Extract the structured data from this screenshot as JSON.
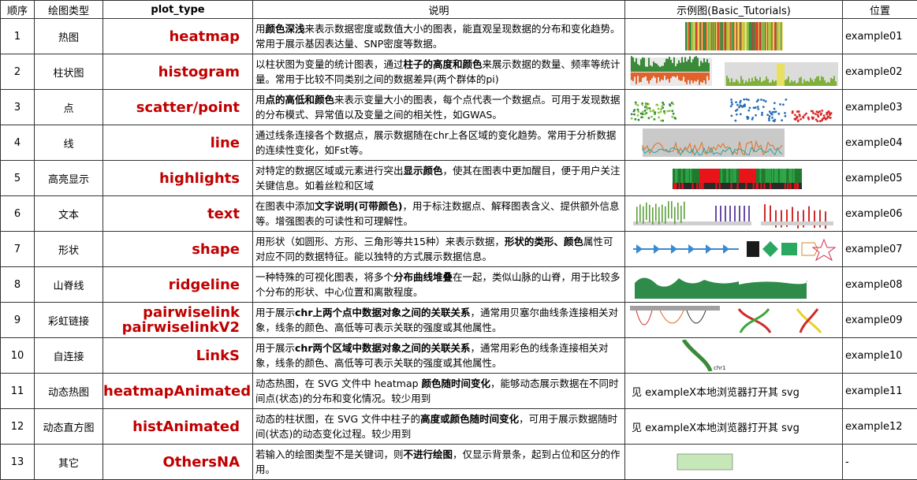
{
  "headers": {
    "order": "顺序",
    "kind": "绘图类型",
    "plot_type": "plot_type",
    "desc": "说明",
    "example": "示例图(Basic_Tutorials)",
    "location": "位置"
  },
  "rows": [
    {
      "order": "1",
      "kind": "热图",
      "plot_type": "heatmap",
      "desc": [
        {
          "t": "用"
        },
        {
          "t": "颜色深浅",
          "b": true
        },
        {
          "t": "来表示数据密度或数值大小的图表，能直观呈现数据的分布和变化趋势。常用于展示基因表达量、SNP密度等数据。"
        }
      ],
      "example_note": "",
      "location": "example01",
      "thumb": "heatmap-thumb"
    },
    {
      "order": "2",
      "kind": "柱状图",
      "plot_type": "histogram",
      "desc": [
        {
          "t": "以柱状图为变量的统计图表，通过"
        },
        {
          "t": "柱子的高度和颜色",
          "b": true
        },
        {
          "t": "来展示数据的数量、频率等统计量。常用于比较不同类别之间的数据差异(两个群体的pi)"
        }
      ],
      "example_note": "",
      "location": "example02",
      "thumb": "histogram-thumb"
    },
    {
      "order": "3",
      "kind": "点",
      "plot_type": "scatter/point",
      "desc": [
        {
          "t": "用"
        },
        {
          "t": "点的高低和颜色",
          "b": true
        },
        {
          "t": "来表示变量大小的图表，每个点代表一个数据点。可用于发现数据的分布模式、异常值以及变量之间的相关性，如GWAS。"
        }
      ],
      "example_note": "",
      "location": "example03",
      "thumb": "scatter-thumb"
    },
    {
      "order": "4",
      "kind": "线",
      "plot_type": "line",
      "desc": [
        {
          "t": "通过线条连接各个数据点，展示数据随在chr上各区域的变化趋势。常用于分析数据的连续性变化，如Fst等。"
        }
      ],
      "example_note": "",
      "location": "example04",
      "thumb": "line-thumb"
    },
    {
      "order": "5",
      "kind": "高亮显示",
      "plot_type": "highlights",
      "desc": [
        {
          "t": "对特定的数据区域或元素进行突出"
        },
        {
          "t": "显示颜色",
          "b": true
        },
        {
          "t": "，使其在图表中更加醒目，便于用户关注关键信息。如着丝粒和区域"
        }
      ],
      "example_note": "",
      "location": "example05",
      "thumb": "highlights-thumb"
    },
    {
      "order": "6",
      "kind": "文本",
      "plot_type": "text",
      "desc": [
        {
          "t": "在图表中添加"
        },
        {
          "t": "文字说明(可带颜色)",
          "b": true
        },
        {
          "t": "，用于标注数据点、解释图表含义、提供额外信息等。增强图表的可读性和可理解性。"
        }
      ],
      "example_note": "",
      "location": "example06",
      "thumb": "text-thumb"
    },
    {
      "order": "7",
      "kind": "形状",
      "plot_type": "shape",
      "desc": [
        {
          "t": "用形状（如圆形、方形、三角形等共15种）来表示数据，"
        },
        {
          "t": "形状的类形、颜色",
          "b": true
        },
        {
          "t": "属性可对应不同的数据特征。能以独特的方式展示数据信息。"
        }
      ],
      "example_note": "",
      "location": "example07",
      "thumb": "shape-thumb"
    },
    {
      "order": "8",
      "kind": "山脊线",
      "plot_type": "ridgeline",
      "desc": [
        {
          "t": "一种特殊的可视化图表，将多个"
        },
        {
          "t": "分布曲线堆叠",
          "b": true
        },
        {
          "t": "在一起，类似山脉的山脊，用于比较多个分布的形状、中心位置和离散程度。"
        }
      ],
      "example_note": "",
      "location": "example08",
      "thumb": "ridgeline-thumb"
    },
    {
      "order": "9",
      "kind": "彩虹链接",
      "plot_type": "pairwiselink\npairwiselinkV2",
      "desc": [
        {
          "t": "用于展示"
        },
        {
          "t": "chr上两个点中数据对象之间的关联关系",
          "b": true
        },
        {
          "t": "，通常用贝塞尔曲线条连接相关对象，线条的颜色、高低等可表示关联的强度或其他属性。"
        }
      ],
      "example_note": "",
      "location": "example09",
      "thumb": "pairwise-thumb"
    },
    {
      "order": "10",
      "kind": "自连接",
      "plot_type": "LinkS",
      "desc": [
        {
          "t": "用于展示"
        },
        {
          "t": "chr两个区域中数据对象之间的关联关系",
          "b": true
        },
        {
          "t": "，通常用彩色的线条连接相关对象，线条的颜色、高低等可表示关联的强度或其他属性。"
        }
      ],
      "example_note": "",
      "location": "example10",
      "thumb": "links-thumb",
      "thumb_label": "chr1"
    },
    {
      "order": "11",
      "kind": "动态热图",
      "plot_type": "heatmapAnimated",
      "desc": [
        {
          "t": "动态热图，在 SVG 文件中 heatmap "
        },
        {
          "t": "颜色随时间变化",
          "b": true
        },
        {
          "t": "，能够动态展示数据在不同时间点(状态)的分布和变化情况。较少用到"
        }
      ],
      "example_note": "见  exampleX本地浏览器打开其 svg",
      "location": "example11",
      "thumb": ""
    },
    {
      "order": "12",
      "kind": "动态直方图",
      "plot_type": "histAnimated",
      "desc": [
        {
          "t": "动态的柱状图，在 SVG 文件中柱子的"
        },
        {
          "t": "高度或颜色随时间变化",
          "b": true
        },
        {
          "t": "，可用于展示数据随时间(状态)的动态变化过程。较少用到"
        }
      ],
      "example_note": "见  exampleX本地浏览器打开其 svg",
      "location": "example12",
      "thumb": ""
    },
    {
      "order": "13",
      "kind": "其它",
      "plot_type": "OthersNA",
      "desc": [
        {
          "t": "若输入的绘图类型不是关键词，则"
        },
        {
          "t": "不进行绘图",
          "b": true
        },
        {
          "t": "，仅显示背景条，起到占位和区分的作用。"
        }
      ],
      "example_note": "",
      "location": "-",
      "thumb": "others-thumb"
    }
  ],
  "colors": {
    "plot_type_text": "#c00000",
    "border": "#333333"
  }
}
